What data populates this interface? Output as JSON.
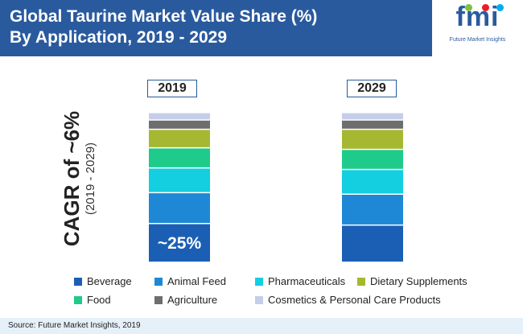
{
  "header": {
    "title_line1": "Global Taurine Market Value Share (%)",
    "title_line2": "By Application, 2019 - 2029"
  },
  "logo": {
    "text": "fmi",
    "tagline": "Future Market Insights",
    "dot_colors": [
      "#7dc242",
      "#ec1c24",
      "#00aeef"
    ]
  },
  "cagr": {
    "label": "CAGR of ~6%",
    "period": "(2019 - 2029)"
  },
  "chart_data": {
    "type": "stacked-bar",
    "title": "Global Taurine Market Value Share (%) By Application, 2019 - 2029",
    "categories": [
      "2019",
      "2029"
    ],
    "unit": "%",
    "series": [
      {
        "name": "Beverage",
        "color": "#1a5fb4",
        "values": [
          25,
          24
        ]
      },
      {
        "name": "Animal Feed",
        "color": "#1e88d6",
        "values": [
          20,
          20
        ]
      },
      {
        "name": "Pharmaceuticals",
        "color": "#13cfe0",
        "values": [
          16,
          16
        ]
      },
      {
        "name": "Food",
        "color": "#1ecb8a",
        "values": [
          13,
          13
        ]
      },
      {
        "name": "Dietary Supplements",
        "color": "#a6b832",
        "values": [
          12,
          13
        ]
      },
      {
        "name": "Agriculture",
        "color": "#6d6e70",
        "values": [
          6,
          6
        ]
      },
      {
        "name": "Cosmetics & Personal Care Products",
        "color": "#c5cdea",
        "values": [
          4,
          4
        ]
      }
    ],
    "annotations": [
      {
        "category": "2019",
        "series": "Beverage",
        "text": "~25%"
      }
    ],
    "ylim": [
      0,
      100
    ]
  },
  "legend_order": [
    "Beverage",
    "Animal Feed",
    "Pharmaceuticals",
    "Dietary Supplements",
    "Food",
    "Agriculture",
    "Cosmetics & Personal Care Products"
  ],
  "footer": {
    "source": "Source: Future Market Insights, 2019"
  }
}
